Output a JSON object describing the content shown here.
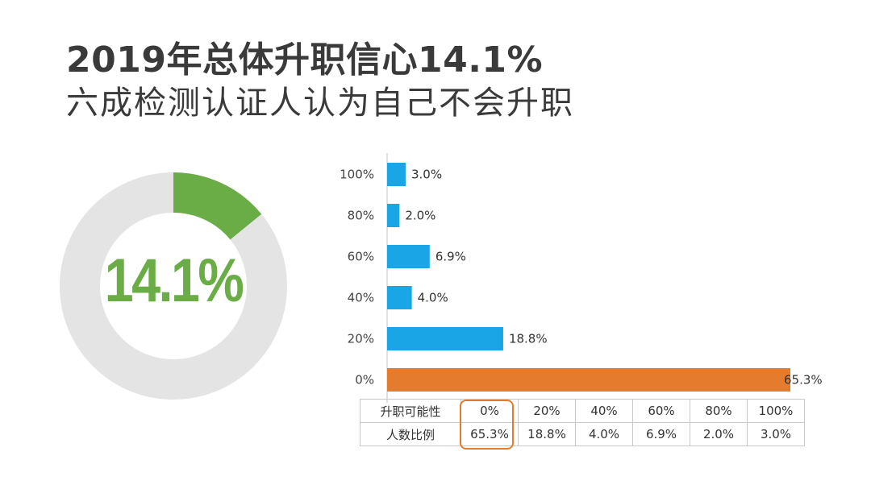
{
  "title_line1": "2019年总体升职信心14.1%",
  "title_line2": "六成检测认证人认为自己不会升职",
  "donut": {
    "value": 14.1,
    "label": "14.1%",
    "fill_color": "#6aac45",
    "track_color": "#e4e4e4"
  },
  "chart_data": {
    "type": "bar",
    "orientation": "horizontal",
    "categories": [
      "100%",
      "80%",
      "60%",
      "40%",
      "20%",
      "0%"
    ],
    "values": [
      3.0,
      2.0,
      6.9,
      4.0,
      18.8,
      65.3
    ],
    "value_labels": [
      "3.0%",
      "2.0%",
      "6.9%",
      "4.0%",
      "18.8%",
      "65.3%"
    ],
    "colors": [
      "#1aa6e6",
      "#1aa6e6",
      "#1aa6e6",
      "#1aa6e6",
      "#1aa6e6",
      "#e57b2d"
    ],
    "grid": false
  },
  "table": {
    "row1_label": "升职可能性",
    "row2_label": "人数比例",
    "row1": [
      "0%",
      "20%",
      "40%",
      "60%",
      "80%",
      "100%"
    ],
    "row2": [
      "65.3%",
      "18.8%",
      "4.0%",
      "6.9%",
      "2.0%",
      "3.0%"
    ]
  }
}
